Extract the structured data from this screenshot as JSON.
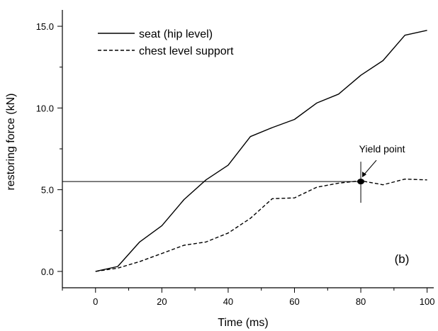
{
  "chart_data": {
    "type": "line",
    "title": "",
    "xlabel": "Time (ms)",
    "ylabel": "restoring force (kN)",
    "xlim": [
      -10,
      102
    ],
    "ylim": [
      -1,
      16
    ],
    "xticks": [
      0,
      20,
      40,
      60,
      80,
      100
    ],
    "yticks": [
      0,
      5,
      10,
      15
    ],
    "xtick_labels": [
      "0",
      "20",
      "40",
      "60",
      "80",
      "100"
    ],
    "ytick_labels": [
      "0.0",
      "5.0",
      "10.0",
      "15.0"
    ],
    "grid": false,
    "legend_position": "top-left",
    "panel_label": "(b)",
    "series": [
      {
        "name": "seat (hip level)",
        "style": "solid",
        "color": "#000000",
        "x": [
          0,
          6.7,
          13.3,
          20,
          26.7,
          33.3,
          40,
          46.7,
          53.3,
          60,
          66.7,
          73.3,
          80,
          86.7,
          93.3,
          100
        ],
        "y": [
          0,
          0.3,
          1.8,
          2.8,
          4.4,
          5.6,
          6.5,
          8.25,
          8.8,
          9.3,
          10.3,
          10.85,
          12.0,
          12.9,
          14.45,
          14.75
        ]
      },
      {
        "name": "chest level support",
        "style": "dashed",
        "color": "#000000",
        "x": [
          0,
          6.7,
          13.3,
          20,
          26.7,
          33.3,
          40,
          46.7,
          53.3,
          60,
          66.7,
          73.3,
          80,
          86.7,
          93.3,
          100
        ],
        "y": [
          0,
          0.2,
          0.6,
          1.1,
          1.6,
          1.8,
          2.35,
          3.25,
          4.45,
          4.5,
          5.15,
          5.4,
          5.55,
          5.3,
          5.65,
          5.6
        ]
      }
    ],
    "reference_line": {
      "y": 5.5,
      "style": "dotted"
    },
    "annotation": {
      "text": "Yield point",
      "x": 80,
      "y": 5.5
    }
  }
}
